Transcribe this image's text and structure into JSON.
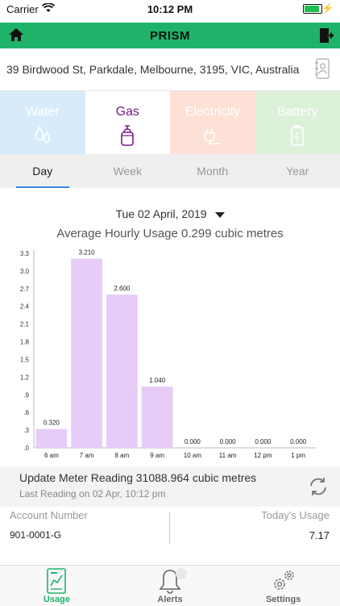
{
  "status": {
    "carrier": "Carrier",
    "time": "10:12 PM"
  },
  "nav": {
    "title": "PRISM"
  },
  "address": "39 Birdwood St, Parkdale, Melbourne, 3195, VIC, Australia",
  "utilities": [
    {
      "label": "Water",
      "icon": "water-drops-icon"
    },
    {
      "label": "Gas",
      "icon": "gas-cylinder-icon"
    },
    {
      "label": "Electricity",
      "icon": "electric-plug-icon"
    },
    {
      "label": "Battery",
      "icon": "battery-icon"
    }
  ],
  "periods": [
    "Day",
    "Week",
    "Month",
    "Year"
  ],
  "selected_date": "Tue 02 April, 2019",
  "average_text": "Average Hourly Usage 0.299 cubic metres",
  "colors": {
    "brand": "#1fb36a",
    "gas": "#7a1a86",
    "bar": "#e6ccf7",
    "tab_underline": "#3a88d6"
  },
  "chart_data": {
    "type": "bar",
    "categories": [
      "6 am",
      "7 am",
      "8 am",
      "9 am",
      "10 am",
      "11 am",
      "12 pm",
      "1 pm"
    ],
    "values": [
      0.32,
      3.21,
      2.6,
      1.04,
      0,
      0,
      0,
      0
    ],
    "value_labels": [
      "0.320",
      "3.210",
      "2.600",
      "1.040",
      "0.000",
      "0.000",
      "0.000",
      "0.000"
    ],
    "yticks": [
      ".0",
      ".3",
      ".6",
      ".9",
      "1.2",
      "1.5",
      "1.8",
      "2.1",
      "2.4",
      "2.7",
      "3.0",
      "3.3"
    ],
    "ylim": [
      0,
      3.3
    ],
    "title": "",
    "xlabel": "",
    "ylabel": ""
  },
  "meter": {
    "main": "Update Meter Reading 31088.964 cubic metres",
    "sub": "Last Reading on 02 Apr, 10:12 pm"
  },
  "account": {
    "number_label": "Account Number",
    "number": "901-0001-G",
    "usage_label": "Today's Usage",
    "usage": "7.17"
  },
  "tabbar": [
    {
      "label": "Usage",
      "icon": "usage-report-icon"
    },
    {
      "label": "Alerts",
      "icon": "bell-icon"
    },
    {
      "label": "Settings",
      "icon": "gears-icon"
    }
  ]
}
